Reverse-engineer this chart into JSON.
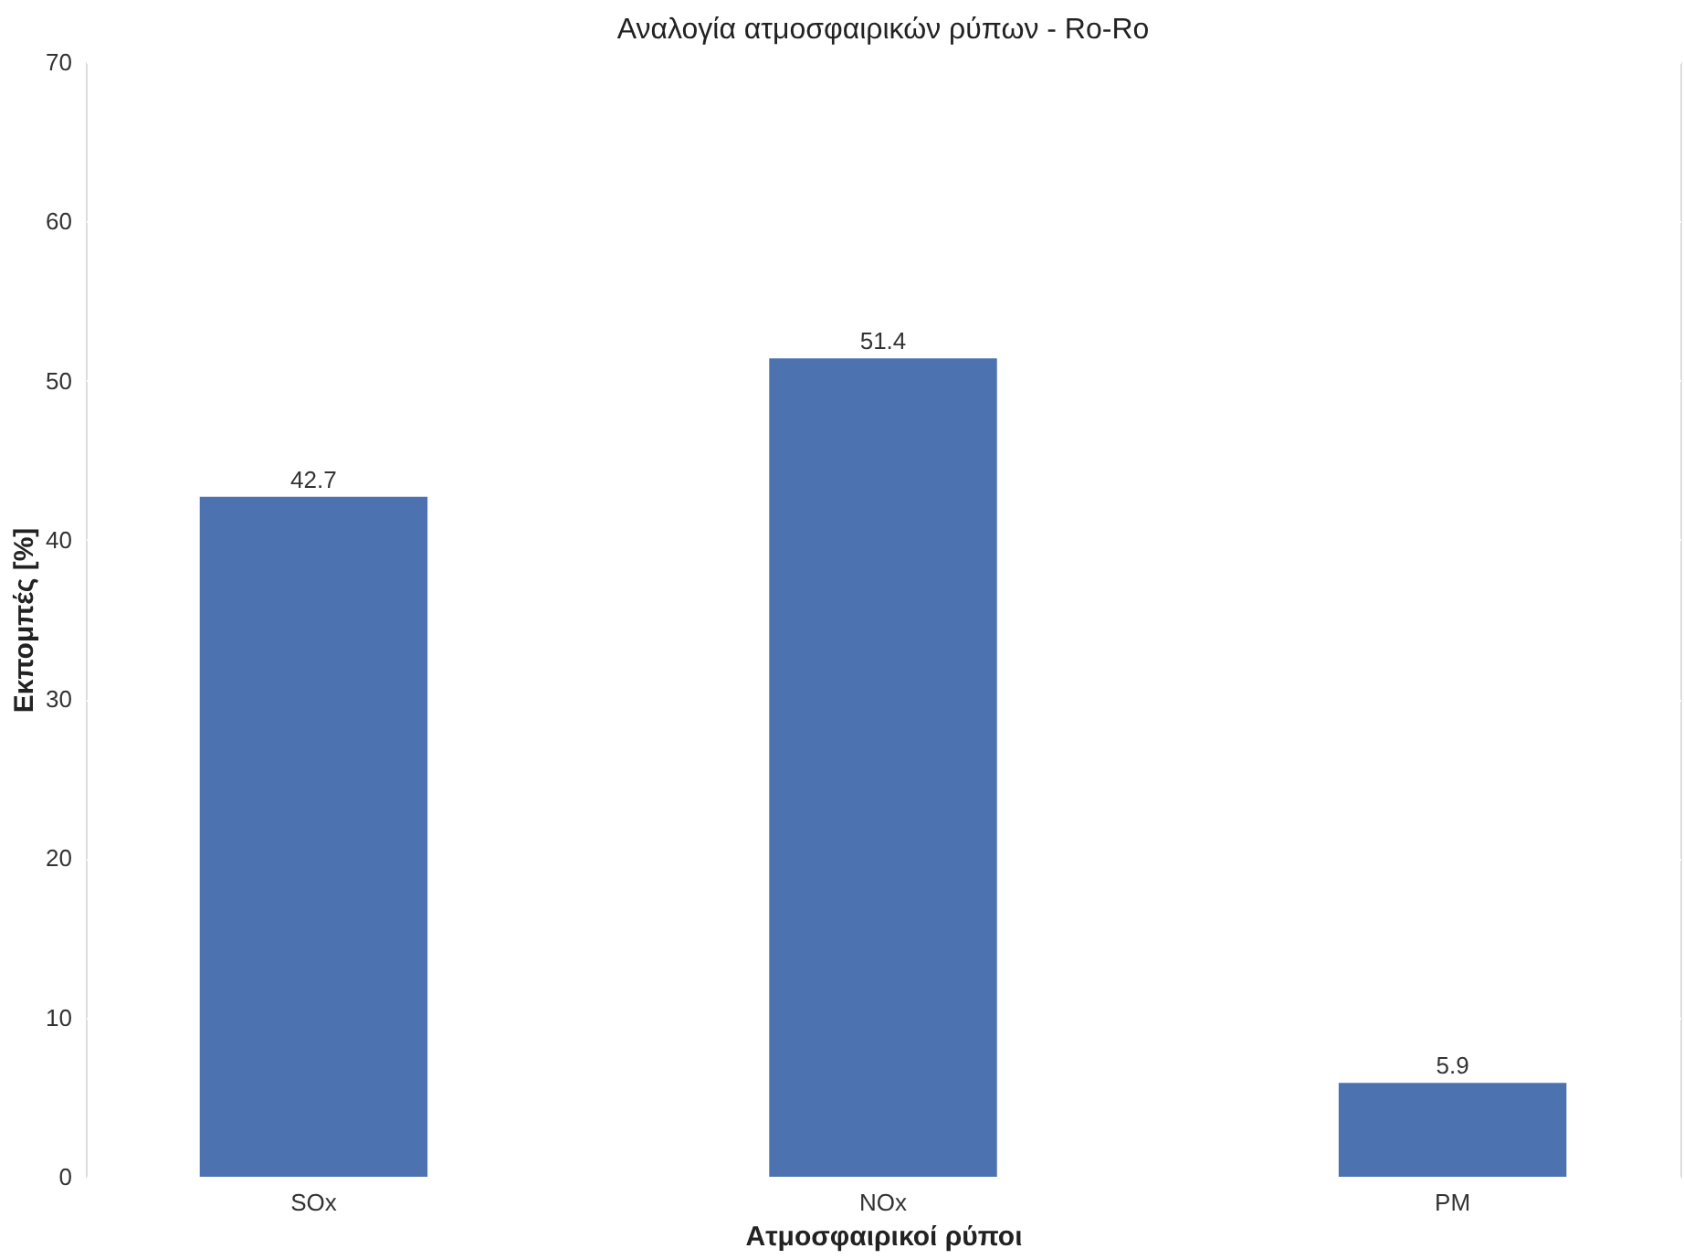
{
  "chart_data": {
    "type": "bar",
    "title": "Αναλογία ατμοσφαιρικών ρύπων - Ro-Ro",
    "xlabel": "Ατμοσφαιρικοί ρύποι",
    "ylabel": "Εκπομπές [%]",
    "categories": [
      "SOx",
      "NOx",
      "PM"
    ],
    "values": [
      42.7,
      51.4,
      5.9
    ],
    "color": "#4c72b0",
    "ylim": [
      0,
      70
    ],
    "yticks": [
      0,
      10,
      20,
      30,
      40,
      50,
      60,
      70
    ],
    "grid": true,
    "data_labels": true
  }
}
